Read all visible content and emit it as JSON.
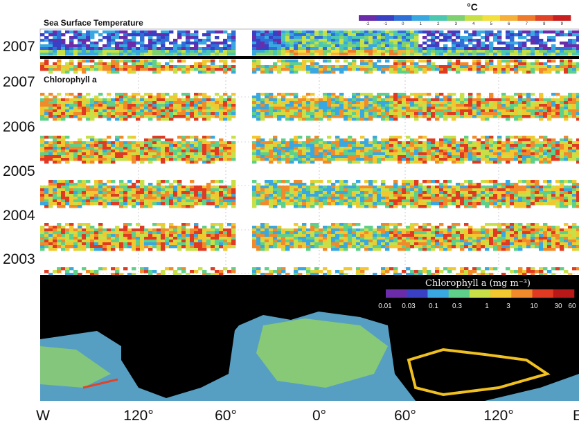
{
  "chart_data": [
    {
      "type": "heatmap",
      "title": "Sea Surface Temperature",
      "colorbar": {
        "unit": "°C",
        "ticks": [
          "-2",
          "-1",
          "0",
          "1",
          "2",
          "3",
          "4",
          "5",
          "6",
          "7",
          "8",
          "9"
        ]
      },
      "y_labels": [
        "2007"
      ]
    },
    {
      "type": "heatmap",
      "title": "Chlorophyll a",
      "y_labels": [
        "2007",
        "2006",
        "2005",
        "2004",
        "2003"
      ],
      "x_labels": [
        "W",
        "120°",
        "60°",
        "0°",
        "60°",
        "120°",
        "E"
      ]
    },
    {
      "type": "map",
      "colorbar": {
        "title": "Chlorophyll a (mg m⁻³)",
        "ticks": [
          "0.01",
          "0.03",
          "0.1",
          "0.3",
          "1",
          "3",
          "10",
          "30",
          "60"
        ]
      }
    }
  ],
  "colors": {
    "sst_scale": [
      "#6a2ca8",
      "#3a40c4",
      "#2f6fd8",
      "#3aa8e0",
      "#4cc8b0",
      "#7fd070",
      "#c8e048",
      "#f2e040",
      "#f4b038",
      "#ee7a2c",
      "#e04428",
      "#c82020"
    ],
    "chl_scale": [
      "#6a2ca8",
      "#3a40c4",
      "#3aa8e0",
      "#5fd08a",
      "#c8e048",
      "#f2c830",
      "#f08a2a",
      "#e03a22",
      "#b81818"
    ],
    "map_land": "#000000",
    "map_ocean_low": "#5fb0d8",
    "map_ocean_mid": "#8fd06a",
    "map_ocean_high": "#f0c020"
  }
}
